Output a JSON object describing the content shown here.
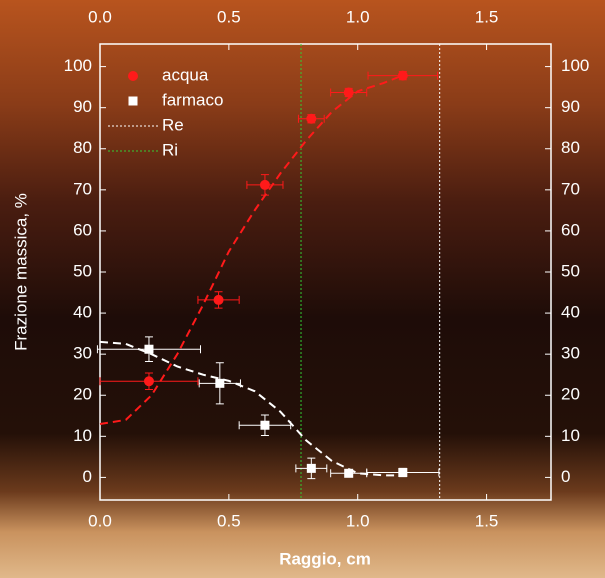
{
  "chart_data": {
    "type": "scatter",
    "xlabel": "Raggio, cm",
    "ylabel": "Frazione massica, %",
    "xlim": [
      0,
      1.75
    ],
    "ylim": [
      -5.5,
      105.5
    ],
    "xticks": [
      {
        "value": 0,
        "label": "0.0"
      },
      0.5,
      {
        "value": 1,
        "label": "1.0"
      },
      1.5
    ],
    "yticks": [
      0,
      10,
      20,
      30,
      40,
      50,
      60,
      70,
      80,
      90,
      100
    ],
    "series": [
      {
        "name": "acqua",
        "color": "#ff1a1a",
        "marker": "circle",
        "x": [
          0.19,
          0.46,
          0.64,
          0.82,
          0.965,
          1.175
        ],
        "values": [
          23.4,
          43.2,
          71.2,
          87.3,
          93.7,
          97.8
        ],
        "xerr": [
          0.19,
          0.08,
          0.07,
          0.05,
          0.07,
          0.135
        ],
        "yerr": [
          2,
          2,
          2.5,
          1,
          1,
          1
        ]
      },
      {
        "name": "farmaco",
        "color": "#ffffff",
        "marker": "square",
        "x": [
          0.19,
          0.465,
          0.64,
          0.82,
          0.965,
          1.175
        ],
        "values": [
          31.2,
          22.9,
          12.7,
          2.2,
          1,
          1.2
        ],
        "xerr": [
          0.2,
          0.08,
          0.1,
          0.06,
          0.07,
          0.14
        ],
        "yerr": [
          3,
          5,
          2.5,
          2.5,
          0.5,
          1
        ]
      }
    ],
    "curves": [
      {
        "color": "#ff1a1a",
        "x": [
          0,
          0.1,
          0.2,
          0.3,
          0.4,
          0.5,
          0.6,
          0.7,
          0.8,
          0.9,
          1.0,
          1.1,
          1.18
        ],
        "values": [
          13,
          14,
          20,
          30,
          42,
          55,
          65,
          74,
          82,
          89,
          94,
          96,
          98
        ]
      },
      {
        "color": "#ffffff",
        "x": [
          0,
          0.1,
          0.2,
          0.3,
          0.4,
          0.5,
          0.6,
          0.7,
          0.8,
          0.9,
          1.0,
          1.1,
          1.15
        ],
        "values": [
          33,
          32.5,
          30,
          27,
          25,
          23.5,
          21,
          16,
          9,
          4,
          1,
          0.5,
          0.5
        ]
      }
    ],
    "vlines": [
      {
        "name": "Re",
        "x": 1.318,
        "color": "#ffffff"
      },
      {
        "name": "Ri",
        "x": 0.78,
        "color": "#33cc33"
      }
    ]
  }
}
